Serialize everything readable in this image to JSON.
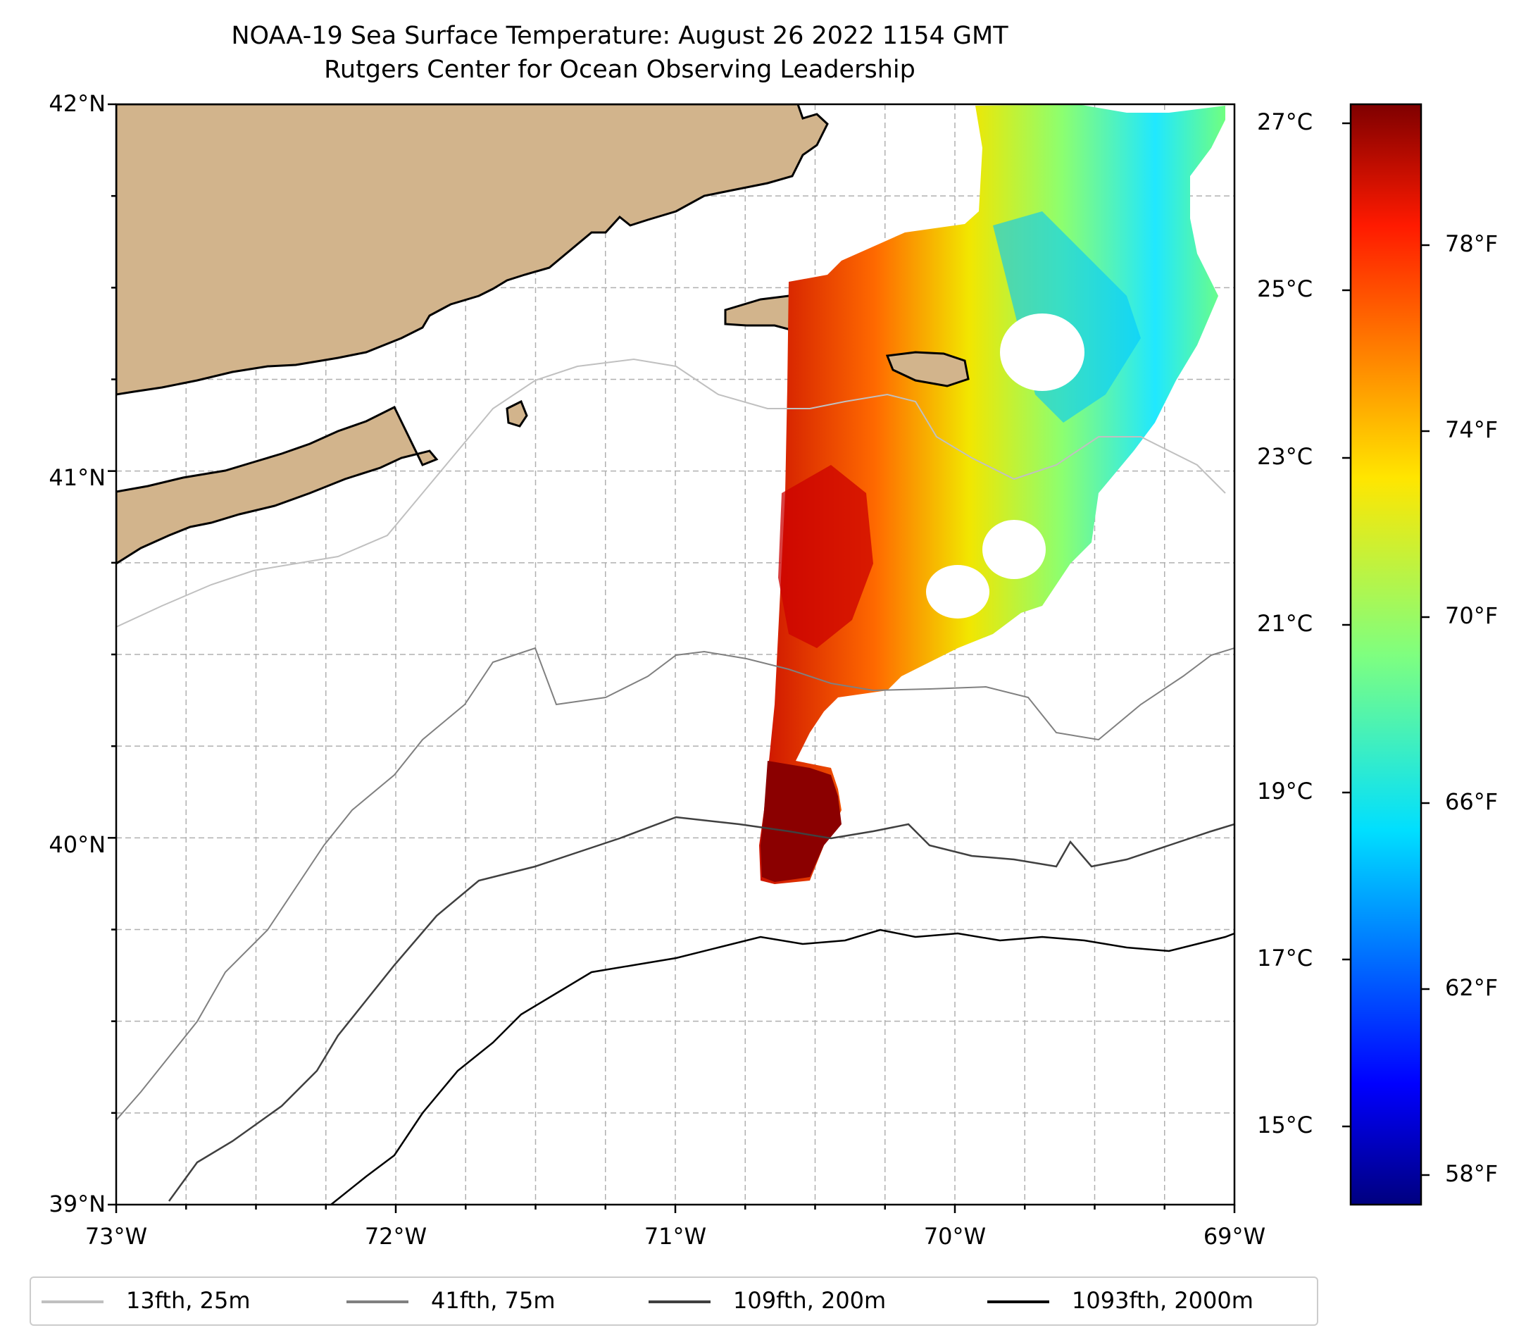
{
  "title": {
    "line1": "NOAA-19 Sea Surface Temperature: August 26 2022 1154 GMT",
    "line2": "Rutgers Center for Ocean Observing Leadership"
  },
  "axes": {
    "lat_ticks": [
      "42°N",
      "41°N",
      "40°N",
      "39°N"
    ],
    "lon_ticks": [
      "73°W",
      "72°W",
      "71°W",
      "70°W",
      "69°W"
    ],
    "lat_range": [
      39,
      42
    ],
    "lon_range": [
      -73,
      -69
    ],
    "grid": "dashed",
    "minor_ticks": "0.25°"
  },
  "colorbar": {
    "colormap": "jet",
    "celsius_ticks": [
      "27°C",
      "25°C",
      "23°C",
      "21°C",
      "19°C",
      "17°C",
      "15°C"
    ],
    "fahrenheit_ticks": [
      "78°F",
      "74°F",
      "70°F",
      "66°F",
      "62°F",
      "58°F"
    ],
    "range_f": [
      57,
      81
    ]
  },
  "legend": {
    "items": [
      {
        "label": "13fth, 25m",
        "color": "#c0c0c0"
      },
      {
        "label": "41fth, 75m",
        "color": "#808080"
      },
      {
        "label": "109fth, 200m",
        "color": "#404040"
      },
      {
        "label": "1093fth, 2000m",
        "color": "#000000"
      }
    ]
  },
  "colors": {
    "land": "#d2b48c",
    "coast": "#000000",
    "grid": "#b0b0b0"
  }
}
